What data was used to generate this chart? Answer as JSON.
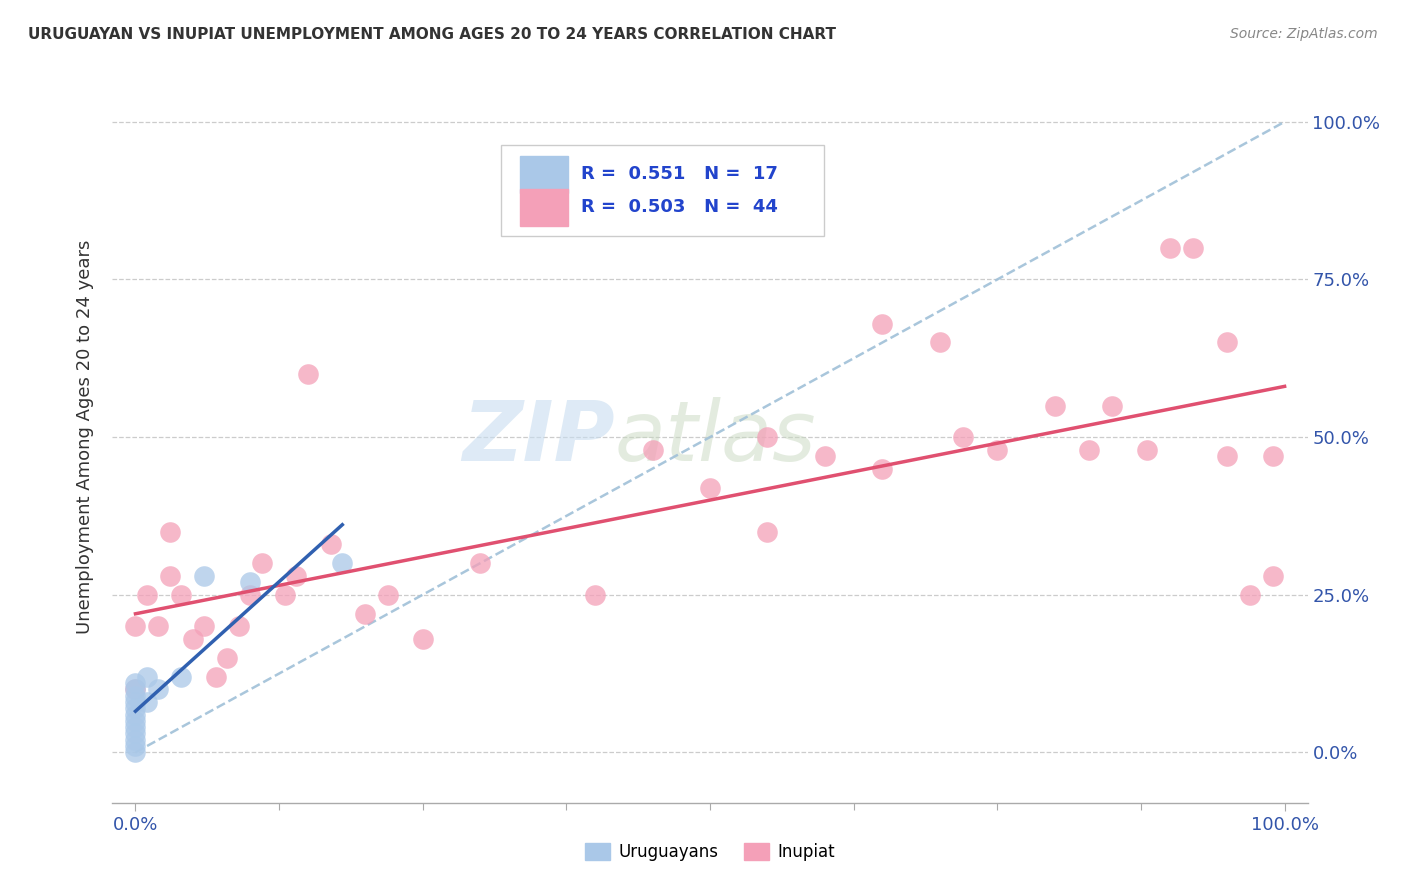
{
  "title": "URUGUAYAN VS INUPIAT UNEMPLOYMENT AMONG AGES 20 TO 24 YEARS CORRELATION CHART",
  "source": "Source: ZipAtlas.com",
  "ylabel": "Unemployment Among Ages 20 to 24 years",
  "ytick_labels": [
    "0.0%",
    "25.0%",
    "50.0%",
    "75.0%",
    "100.0%"
  ],
  "ytick_values": [
    0,
    25,
    50,
    75,
    100
  ],
  "xlim": [
    -2,
    102
  ],
  "ylim": [
    -8,
    108
  ],
  "uruguayan_color": "#aac8e8",
  "inupiat_color": "#f4a0b8",
  "uruguayan_line_color": "#3060b0",
  "inupiat_line_color": "#e05070",
  "dash_line_color": "#a0c0d8",
  "uruguayan_x": [
    0,
    0,
    0,
    0,
    0,
    0,
    0,
    0,
    0,
    0,
    0,
    0,
    1,
    1,
    2,
    4,
    6,
    10,
    18
  ],
  "uruguayan_y": [
    0,
    1,
    2,
    3,
    4,
    5,
    6,
    7,
    8,
    9,
    10,
    11,
    12,
    8,
    10,
    12,
    28,
    27,
    30
  ],
  "inupiat_x": [
    0,
    0,
    1,
    2,
    3,
    3,
    4,
    5,
    6,
    7,
    8,
    9,
    10,
    11,
    13,
    14,
    15,
    17,
    20,
    22,
    25,
    30,
    40,
    45,
    50,
    55,
    60,
    65,
    70,
    72,
    75,
    80,
    83,
    85,
    88,
    90,
    92,
    95,
    95,
    97,
    99,
    99,
    55,
    65
  ],
  "inupiat_y": [
    10,
    20,
    25,
    20,
    35,
    28,
    25,
    18,
    20,
    12,
    15,
    20,
    25,
    30,
    25,
    28,
    60,
    33,
    22,
    25,
    18,
    30,
    25,
    48,
    42,
    50,
    47,
    45,
    65,
    50,
    48,
    55,
    48,
    55,
    48,
    80,
    80,
    65,
    47,
    25,
    28,
    47,
    35,
    68
  ]
}
